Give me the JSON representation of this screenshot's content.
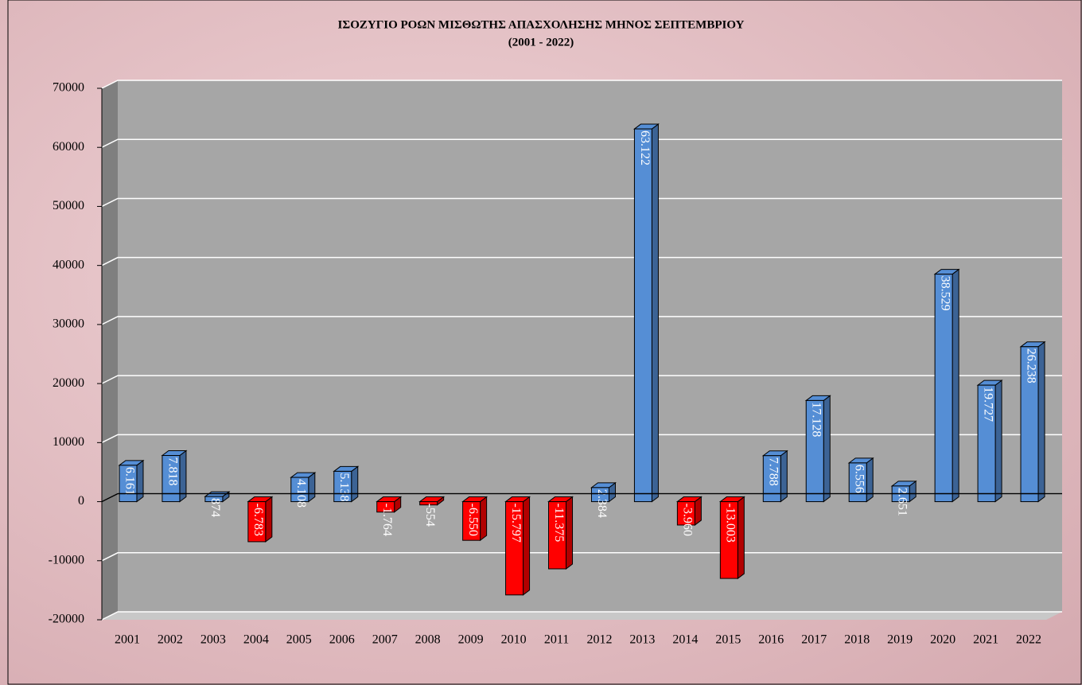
{
  "chart_data": {
    "type": "bar",
    "title": "ΙΣΟΖΥΓΙΟ ΡΟΩΝ ΜΙΣΘΩΤΗΣ ΑΠΑΣΧΟΛΗΣΗΣ ΜΗΝΟΣ  ΣΕΠΤΕΜΒΡΙΟΥ",
    "subtitle": "(2001 - 2022)",
    "categories": [
      "2001",
      "2002",
      "2003",
      "2004",
      "2005",
      "2006",
      "2007",
      "2008",
      "2009",
      "2010",
      "2011",
      "2012",
      "2013",
      "2014",
      "2015",
      "2016",
      "2017",
      "2018",
      "2019",
      "2020",
      "2021",
      "2022"
    ],
    "values": [
      6161,
      7818,
      874,
      -6783,
      4108,
      5138,
      -1764,
      -554,
      -6550,
      -15797,
      -11375,
      2384,
      63122,
      -3960,
      -13003,
      7788,
      17128,
      6556,
      2651,
      38529,
      19727,
      26238
    ],
    "value_labels": [
      "6.161",
      "7.818",
      "874",
      "-6.783",
      "4.108",
      "5.138",
      "-1.764",
      "-554",
      "-6.550",
      "-15.797",
      "-11.375",
      "2.384",
      "63.122",
      "-3.960",
      "-13.003",
      "7.788",
      "17.128",
      "6.556",
      "2.651",
      "38.529",
      "19.727",
      "26.238"
    ],
    "color": "#558ed5",
    "negative_color": "#ff0000",
    "ylim": [
      -20000,
      70000
    ],
    "yticks": [
      -20000,
      -10000,
      0,
      10000,
      20000,
      30000,
      40000,
      50000,
      60000,
      70000
    ],
    "grid": true
  }
}
